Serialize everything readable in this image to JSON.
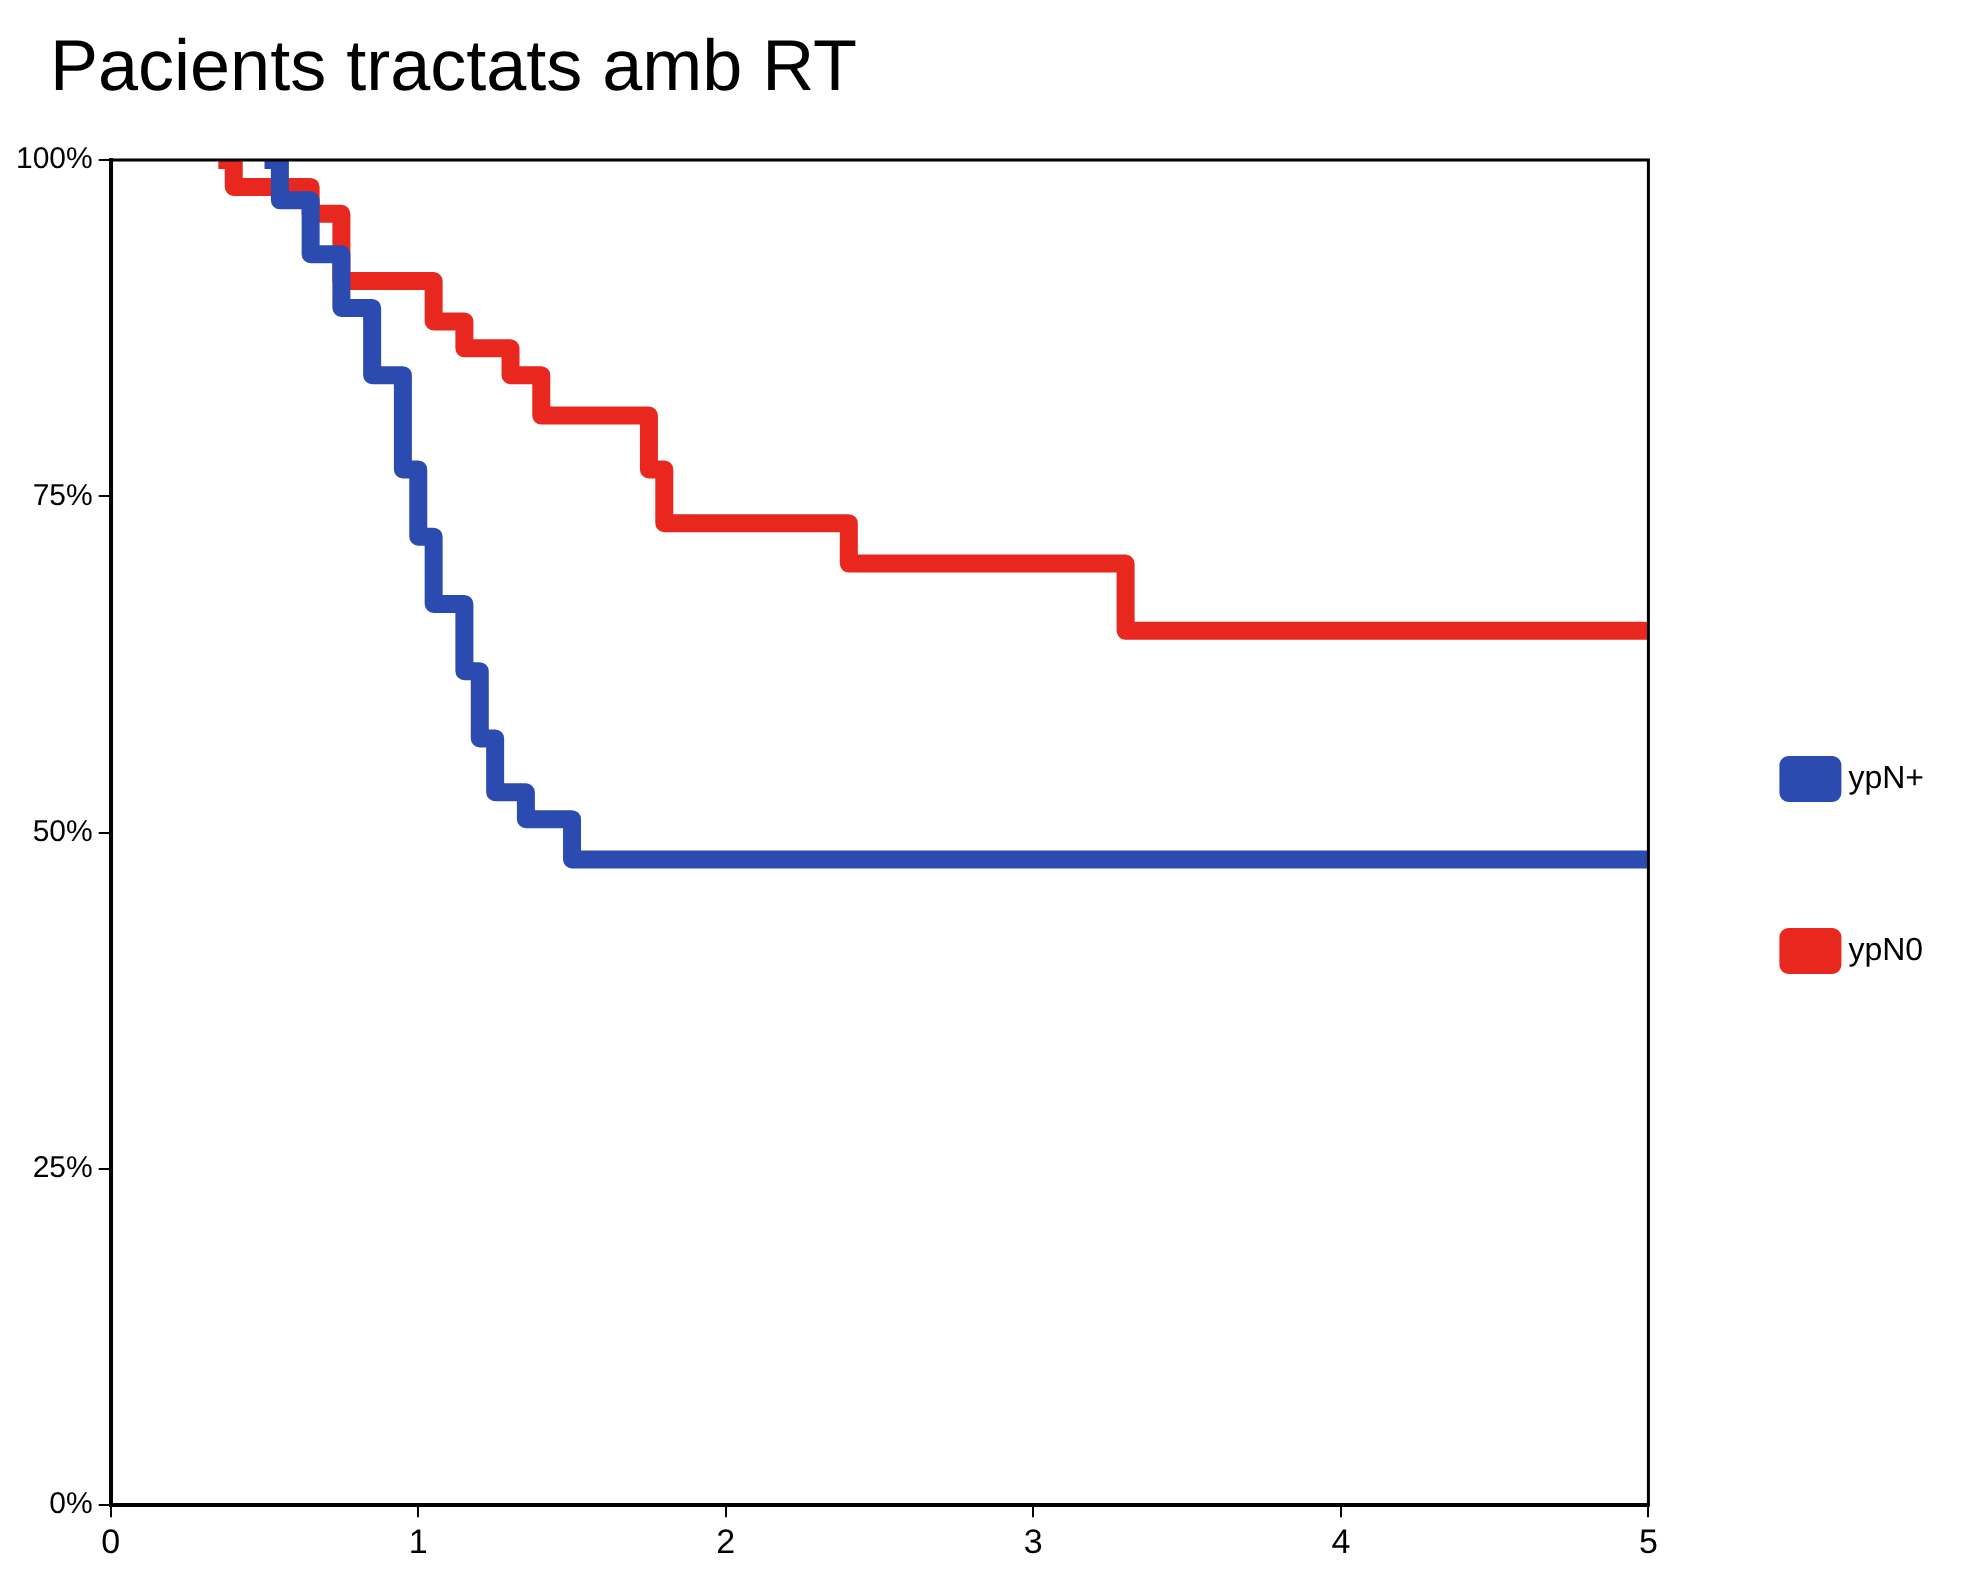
{
  "chart_data": {
    "type": "step",
    "title": "Pacients tractats amb RT",
    "series": [
      {
        "name": "ypN+",
        "color": "#2b4bb0",
        "x": [
          0.5,
          0.55,
          0.65,
          0.75,
          0.85,
          0.95,
          1.0,
          1.05,
          1.15,
          1.2,
          1.25,
          1.35,
          1.5,
          5
        ],
        "values": [
          100,
          97,
          93,
          89,
          84,
          77,
          72,
          67,
          62,
          57,
          53,
          51,
          48,
          48
        ]
      },
      {
        "name": "ypN0",
        "color": "#e8281e",
        "x": [
          0.35,
          0.4,
          0.65,
          0.75,
          1.05,
          1.15,
          1.3,
          1.4,
          1.75,
          1.8,
          2.4,
          3.3,
          5
        ],
        "values": [
          100,
          98,
          96,
          91,
          88,
          86,
          84,
          81,
          77,
          73,
          70,
          65,
          65
        ]
      }
    ],
    "xlim": [
      0,
      5
    ],
    "xticks": [
      0,
      1,
      2,
      3,
      4,
      5
    ],
    "ylim": [
      0,
      100
    ],
    "yticks": [
      {
        "value": 0,
        "label": "0%"
      },
      {
        "value": 25,
        "label": "25%"
      },
      {
        "value": 50,
        "label": "50%"
      },
      {
        "value": 75,
        "label": "75%"
      },
      {
        "value": 100,
        "label": "100%"
      }
    ],
    "grid": false,
    "legend": "right",
    "marker": "none",
    "line_style": "solid"
  }
}
